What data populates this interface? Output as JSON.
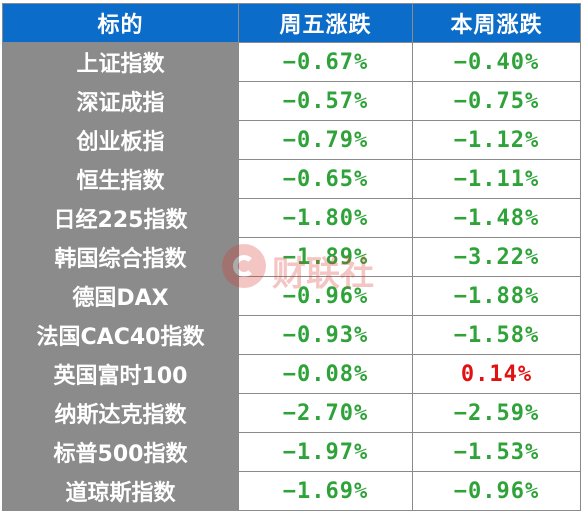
{
  "header": {
    "col1": "标的",
    "col2": "周五涨跌",
    "col3": "本周涨跌"
  },
  "rows": [
    {
      "name": "上证指数",
      "fri": "−0.67%",
      "week": "−0.40%"
    },
    {
      "name": "深证成指",
      "fri": "−0.57%",
      "week": "−0.75%"
    },
    {
      "name": "创业板指",
      "fri": "−0.79%",
      "week": "−1.12%"
    },
    {
      "name": "恒生指数",
      "fri": "−0.65%",
      "week": "−1.11%"
    },
    {
      "name": "日经225指数",
      "fri": "−1.80%",
      "week": "−1.48%"
    },
    {
      "name": "韩国综合指数",
      "fri": "−1.89%",
      "week": "−3.22%"
    },
    {
      "name": "德国DAX",
      "fri": "−0.96%",
      "week": "−1.88%"
    },
    {
      "name": "法国CAC40指数",
      "fri": "−0.93%",
      "week": "−1.58%"
    },
    {
      "name": "英国富时100",
      "fri": "−0.08%",
      "week": "0.14%"
    },
    {
      "name": "纳斯达克指数",
      "fri": "−2.70%",
      "week": "−2.59%"
    },
    {
      "name": "标普500指数",
      "fri": "−1.97%",
      "week": "−1.53%"
    },
    {
      "name": "道琼斯指数",
      "fri": "−1.69%",
      "week": "−0.96%"
    }
  ],
  "colors": {
    "header_bg": "#0b6cc9",
    "name_bg": "#8b8b8b",
    "down": "#2fa33a",
    "up": "#e01212"
  },
  "watermark": {
    "text": "财联社",
    "logo_icon": "cls-logo-icon"
  }
}
